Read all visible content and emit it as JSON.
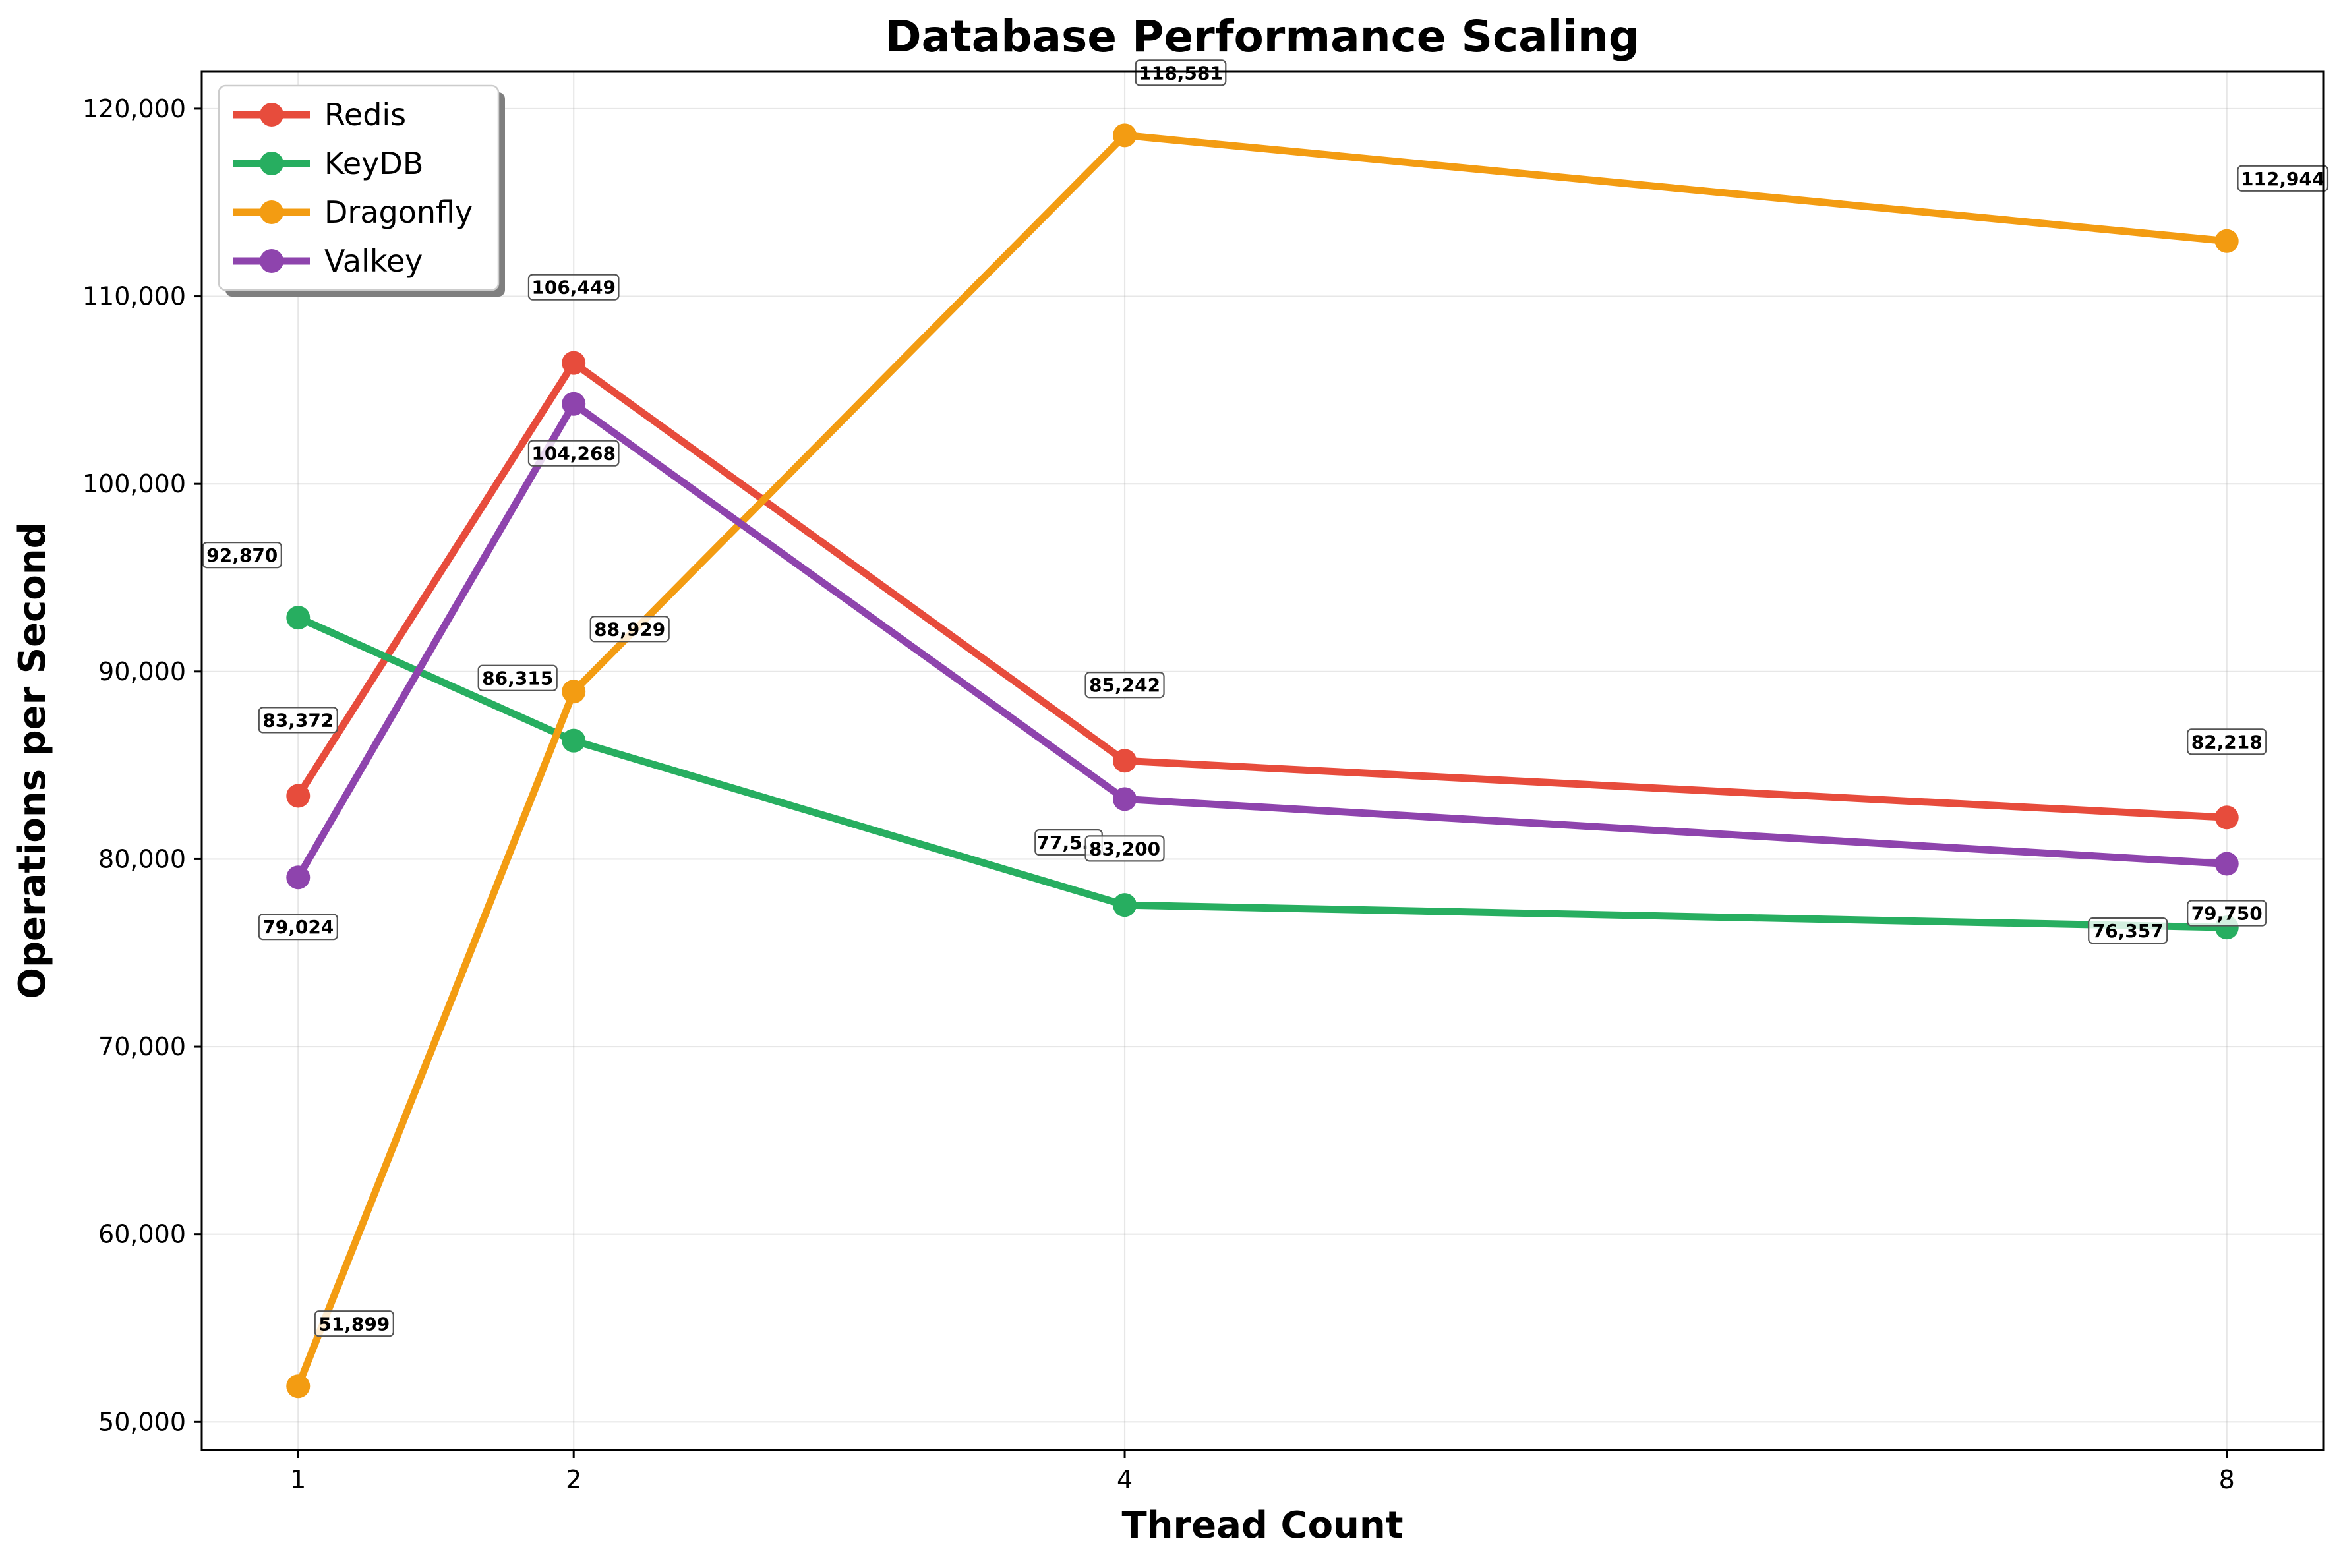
{
  "chart_data": {
    "type": "line",
    "title": "Database Performance Scaling",
    "xlabel": "Thread Count",
    "ylabel": "Operations per Second",
    "x": [
      1,
      2,
      4,
      8
    ],
    "x_tick_labels": [
      "1",
      "2",
      "4",
      "8"
    ],
    "xlim": [
      0.65,
      8.35
    ],
    "ylim": [
      48500,
      122000
    ],
    "y_ticks": [
      50000,
      60000,
      70000,
      80000,
      90000,
      100000,
      110000,
      120000
    ],
    "y_tick_labels": [
      "50,000",
      "60,000",
      "70,000",
      "80,000",
      "90,000",
      "100,000",
      "110,000",
      "120,000"
    ],
    "grid": true,
    "legend_position": "top-left",
    "series": [
      {
        "name": "Redis",
        "color": "#e74c3c",
        "values": [
          83372,
          106449,
          85242,
          82218
        ],
        "labels": [
          "83,372",
          "106,449",
          "85,242",
          "82,218"
        ]
      },
      {
        "name": "KeyDB",
        "color": "#27ae60",
        "values": [
          92870,
          86315,
          77550,
          76357
        ],
        "labels": [
          "92,870",
          "86,315",
          "77,5…",
          "76,357"
        ]
      },
      {
        "name": "Dragonfly",
        "color": "#f39c12",
        "values": [
          51899,
          88929,
          118581,
          112944
        ],
        "labels": [
          "51,899",
          "88,929",
          "118,581",
          "112,944"
        ]
      },
      {
        "name": "Valkey",
        "color": "#8e44ad",
        "values": [
          79024,
          104268,
          83200,
          79750
        ],
        "labels": [
          "79,024",
          "104,268",
          "83,200",
          "79,750"
        ]
      }
    ]
  }
}
